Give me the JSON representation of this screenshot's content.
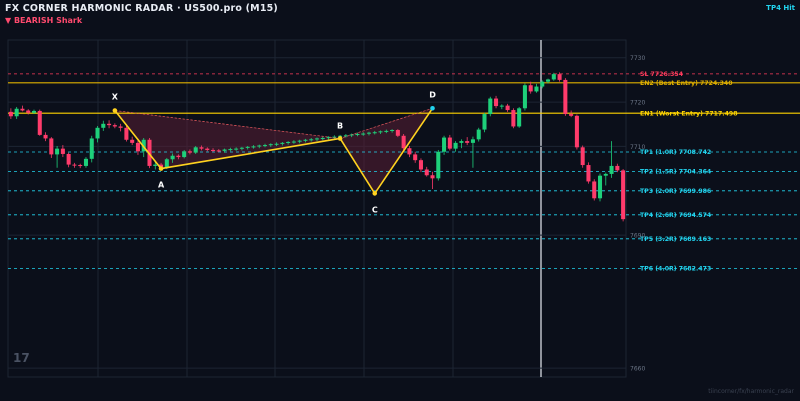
{
  "header": {
    "title": "FX CORNER HARMONIC RADAR  ·  US500.pro (M15)",
    "subtitle": "▼ BEARISH  Shark",
    "status": "TP4 Hit"
  },
  "footer": {
    "watermark": "tiincorner/fx/harmonic_radar",
    "logo": "17"
  },
  "chart_data": {
    "type": "candlestick",
    "symbol": "US500.pro",
    "timeframe": "M15",
    "ylim": [
      7658,
      7734
    ],
    "y_ticks": [
      7660,
      7690,
      7710,
      7720,
      7730
    ],
    "candle_count": 107,
    "candles": [
      {
        "o": 7717.8,
        "h": 7718.6,
        "l": 7716.2,
        "c": 7716.8
      },
      {
        "o": 7716.8,
        "h": 7718.9,
        "l": 7716.2,
        "c": 7718.5
      },
      {
        "o": 7718.5,
        "h": 7719.2,
        "l": 7717.9,
        "c": 7718.1
      },
      {
        "o": 7718.1,
        "h": 7718.4,
        "l": 7717.2,
        "c": 7717.6
      },
      {
        "o": 7717.6,
        "h": 7718.3,
        "l": 7717.3,
        "c": 7718.0
      },
      {
        "o": 7718.0,
        "h": 7718.3,
        "l": 7712.4,
        "c": 7712.6
      },
      {
        "o": 7712.6,
        "h": 7713.2,
        "l": 7711.2,
        "c": 7711.8
      },
      {
        "o": 7711.8,
        "h": 7712.1,
        "l": 7707.4,
        "c": 7708.2
      },
      {
        "o": 7708.2,
        "h": 7710.1,
        "l": 7705.2,
        "c": 7709.5
      },
      {
        "o": 7709.5,
        "h": 7710.3,
        "l": 7707.6,
        "c": 7708.3
      },
      {
        "o": 7708.3,
        "h": 7708.6,
        "l": 7705.3,
        "c": 7705.9
      },
      {
        "o": 7705.9,
        "h": 7706.3,
        "l": 7705.2,
        "c": 7705.8
      },
      {
        "o": 7705.8,
        "h": 7706.1,
        "l": 7705.1,
        "c": 7705.6
      },
      {
        "o": 7705.6,
        "h": 7707.6,
        "l": 7705.2,
        "c": 7707.2
      },
      {
        "o": 7707.2,
        "h": 7712.4,
        "l": 7706.4,
        "c": 7711.8
      },
      {
        "o": 7711.8,
        "h": 7714.6,
        "l": 7710.9,
        "c": 7714.2
      },
      {
        "o": 7714.2,
        "h": 7715.8,
        "l": 7713.5,
        "c": 7715.1
      },
      {
        "o": 7715.1,
        "h": 7715.9,
        "l": 7714.1,
        "c": 7714.8
      },
      {
        "o": 7714.8,
        "h": 7715.2,
        "l": 7714.1,
        "c": 7714.5
      },
      {
        "o": 7714.5,
        "h": 7715.1,
        "l": 7713.4,
        "c": 7714.2
      },
      {
        "o": 7714.2,
        "h": 7714.6,
        "l": 7711.1,
        "c": 7711.5
      },
      {
        "o": 7711.5,
        "h": 7712.2,
        "l": 7710.3,
        "c": 7710.8
      },
      {
        "o": 7710.8,
        "h": 7711.4,
        "l": 7708.1,
        "c": 7708.9
      },
      {
        "o": 7708.9,
        "h": 7711.9,
        "l": 7707.6,
        "c": 7711.5
      },
      {
        "o": 7711.5,
        "h": 7711.9,
        "l": 7705.1,
        "c": 7705.6
      },
      {
        "o": 7705.6,
        "h": 7706.8,
        "l": 7704.8,
        "c": 7705.9
      },
      {
        "o": 7705.9,
        "h": 7706.3,
        "l": 7704.7,
        "c": 7705.3
      },
      {
        "o": 7705.3,
        "h": 7707.4,
        "l": 7704.9,
        "c": 7707.1
      },
      {
        "o": 7707.1,
        "h": 7708.4,
        "l": 7706.3,
        "c": 7707.9
      },
      {
        "o": 7707.9,
        "h": 7708.2,
        "l": 7707.1,
        "c": 7707.6
      },
      {
        "o": 7707.6,
        "h": 7709.2,
        "l": 7707.3,
        "c": 7708.9
      },
      {
        "o": 7708.9,
        "h": 7709.3,
        "l": 7708.2,
        "c": 7708.6
      },
      {
        "o": 7708.6,
        "h": 7710.1,
        "l": 7708.3,
        "c": 7709.8
      },
      {
        "o": 7709.8,
        "h": 7710.2,
        "l": 7709.1,
        "c": 7709.5
      },
      {
        "o": 7709.5,
        "h": 7709.8,
        "l": 7708.9,
        "c": 7709.2
      },
      {
        "o": 7709.2,
        "h": 7709.6,
        "l": 7708.8,
        "c": 7709.1
      },
      {
        "o": 7709.1,
        "h": 7709.4,
        "l": 7708.7,
        "c": 7709.0
      },
      {
        "o": 7709.0,
        "h": 7709.5,
        "l": 7708.6,
        "c": 7709.3
      },
      {
        "o": 7709.3,
        "h": 7709.7,
        "l": 7708.9,
        "c": 7709.4
      },
      {
        "o": 7709.4,
        "h": 7709.8,
        "l": 7709.0,
        "c": 7709.5
      },
      {
        "o": 7709.5,
        "h": 7709.9,
        "l": 7709.1,
        "c": 7709.7
      },
      {
        "o": 7709.7,
        "h": 7710.1,
        "l": 7709.3,
        "c": 7709.9
      },
      {
        "o": 7709.9,
        "h": 7710.3,
        "l": 7709.5,
        "c": 7710.0
      },
      {
        "o": 7710.0,
        "h": 7710.4,
        "l": 7709.6,
        "c": 7710.2
      },
      {
        "o": 7710.2,
        "h": 7710.6,
        "l": 7709.8,
        "c": 7710.3
      },
      {
        "o": 7710.3,
        "h": 7710.7,
        "l": 7709.9,
        "c": 7710.5
      },
      {
        "o": 7710.5,
        "h": 7710.9,
        "l": 7710.1,
        "c": 7710.6
      },
      {
        "o": 7710.6,
        "h": 7711.0,
        "l": 7710.2,
        "c": 7710.8
      },
      {
        "o": 7710.8,
        "h": 7711.2,
        "l": 7710.4,
        "c": 7711.0
      },
      {
        "o": 7711.0,
        "h": 7711.4,
        "l": 7710.6,
        "c": 7711.1
      },
      {
        "o": 7711.1,
        "h": 7711.5,
        "l": 7710.7,
        "c": 7711.3
      },
      {
        "o": 7711.3,
        "h": 7711.7,
        "l": 7710.9,
        "c": 7711.5
      },
      {
        "o": 7711.5,
        "h": 7711.9,
        "l": 7711.1,
        "c": 7711.6
      },
      {
        "o": 7711.6,
        "h": 7712.0,
        "l": 7711.2,
        "c": 7711.8
      },
      {
        "o": 7711.8,
        "h": 7712.2,
        "l": 7711.4,
        "c": 7711.9
      },
      {
        "o": 7711.9,
        "h": 7712.3,
        "l": 7711.5,
        "c": 7712.1
      },
      {
        "o": 7712.1,
        "h": 7712.5,
        "l": 7711.7,
        "c": 7712.2
      },
      {
        "o": 7712.2,
        "h": 7712.6,
        "l": 7711.8,
        "c": 7712.4
      },
      {
        "o": 7712.4,
        "h": 7712.8,
        "l": 7712.0,
        "c": 7712.5
      },
      {
        "o": 7712.5,
        "h": 7712.9,
        "l": 7712.1,
        "c": 7712.7
      },
      {
        "o": 7712.7,
        "h": 7713.1,
        "l": 7712.3,
        "c": 7712.8
      },
      {
        "o": 7712.8,
        "h": 7713.2,
        "l": 7712.4,
        "c": 7712.9
      },
      {
        "o": 7712.9,
        "h": 7713.3,
        "l": 7712.5,
        "c": 7713.1
      },
      {
        "o": 7713.1,
        "h": 7713.5,
        "l": 7712.7,
        "c": 7713.2
      },
      {
        "o": 7713.2,
        "h": 7713.6,
        "l": 7712.8,
        "c": 7713.4
      },
      {
        "o": 7713.4,
        "h": 7713.8,
        "l": 7713.0,
        "c": 7713.5
      },
      {
        "o": 7713.5,
        "h": 7713.9,
        "l": 7713.1,
        "c": 7713.7
      },
      {
        "o": 7713.7,
        "h": 7713.9,
        "l": 7712.1,
        "c": 7712.4
      },
      {
        "o": 7712.4,
        "h": 7712.8,
        "l": 7709.1,
        "c": 7709.6
      },
      {
        "o": 7709.6,
        "h": 7710.1,
        "l": 7707.6,
        "c": 7708.2
      },
      {
        "o": 7708.2,
        "h": 7708.8,
        "l": 7706.3,
        "c": 7706.9
      },
      {
        "o": 7706.9,
        "h": 7707.3,
        "l": 7704.2,
        "c": 7704.8
      },
      {
        "o": 7704.8,
        "h": 7705.4,
        "l": 7703.2,
        "c": 7703.5
      },
      {
        "o": 7703.5,
        "h": 7704.3,
        "l": 7700.4,
        "c": 7702.8
      },
      {
        "o": 7702.8,
        "h": 7709.2,
        "l": 7702.3,
        "c": 7708.8
      },
      {
        "o": 7708.8,
        "h": 7712.4,
        "l": 7708.1,
        "c": 7712.0
      },
      {
        "o": 7712.0,
        "h": 7712.6,
        "l": 7709.1,
        "c": 7709.5
      },
      {
        "o": 7709.5,
        "h": 7711.2,
        "l": 7708.8,
        "c": 7710.8
      },
      {
        "o": 7710.8,
        "h": 7711.6,
        "l": 7709.6,
        "c": 7711.2
      },
      {
        "o": 7711.2,
        "h": 7712.1,
        "l": 7710.3,
        "c": 7710.8
      },
      {
        "o": 7710.8,
        "h": 7712.2,
        "l": 7705.2,
        "c": 7711.6
      },
      {
        "o": 7711.6,
        "h": 7714.2,
        "l": 7711.1,
        "c": 7713.8
      },
      {
        "o": 7713.8,
        "h": 7717.6,
        "l": 7713.2,
        "c": 7717.3
      },
      {
        "o": 7717.3,
        "h": 7721.2,
        "l": 7716.8,
        "c": 7720.8
      },
      {
        "o": 7720.8,
        "h": 7721.4,
        "l": 7718.6,
        "c": 7719.1
      },
      {
        "o": 7719.1,
        "h": 7719.5,
        "l": 7718.4,
        "c": 7719.2
      },
      {
        "o": 7719.2,
        "h": 7719.6,
        "l": 7717.8,
        "c": 7718.2
      },
      {
        "o": 7718.2,
        "h": 7718.6,
        "l": 7714.1,
        "c": 7714.5
      },
      {
        "o": 7714.5,
        "h": 7718.9,
        "l": 7714.2,
        "c": 7718.6
      },
      {
        "o": 7718.6,
        "h": 7724.2,
        "l": 7718.1,
        "c": 7723.8
      },
      {
        "o": 7723.8,
        "h": 7724.6,
        "l": 7721.9,
        "c": 7722.4
      },
      {
        "o": 7722.4,
        "h": 7724.1,
        "l": 7722.1,
        "c": 7723.5
      },
      {
        "o": 7723.5,
        "h": 7724.9,
        "l": 7723.1,
        "c": 7724.6
      },
      {
        "o": 7724.6,
        "h": 7725.3,
        "l": 7724.2,
        "c": 7725.1
      },
      {
        "o": 7725.1,
        "h": 7726.6,
        "l": 7724.8,
        "c": 7726.3
      },
      {
        "o": 7726.3,
        "h": 7726.7,
        "l": 7724.6,
        "c": 7725.0
      },
      {
        "o": 7725.0,
        "h": 7725.4,
        "l": 7716.9,
        "c": 7717.3
      },
      {
        "o": 7717.3,
        "h": 7718.1,
        "l": 7716.6,
        "c": 7716.9
      },
      {
        "o": 7716.9,
        "h": 7717.2,
        "l": 7709.3,
        "c": 7709.8
      },
      {
        "o": 7709.8,
        "h": 7710.2,
        "l": 7705.2,
        "c": 7705.8
      },
      {
        "o": 7705.8,
        "h": 7706.4,
        "l": 7701.6,
        "c": 7702.1
      },
      {
        "o": 7702.1,
        "h": 7702.6,
        "l": 7697.8,
        "c": 7698.3
      },
      {
        "o": 7698.3,
        "h": 7703.9,
        "l": 7697.6,
        "c": 7703.4
      },
      {
        "o": 7703.4,
        "h": 7704.1,
        "l": 7701.2,
        "c": 7703.8
      },
      {
        "o": 7703.8,
        "h": 7711.2,
        "l": 7702.9,
        "c": 7705.6
      },
      {
        "o": 7705.6,
        "h": 7706.1,
        "l": 7704.2,
        "c": 7704.6
      },
      {
        "o": 7704.6,
        "h": 7704.9,
        "l": 7693.1,
        "c": 7693.6
      }
    ],
    "pattern": {
      "name": "Shark",
      "direction": "bearish",
      "points": [
        {
          "label": "X",
          "i": 18,
          "price": 7718.1
        },
        {
          "label": "A",
          "i": 26,
          "price": 7705.0
        },
        {
          "label": "B",
          "i": 57,
          "price": 7711.8
        },
        {
          "label": "C",
          "i": 63,
          "price": 7699.4
        },
        {
          "label": "D",
          "i": 73,
          "price": 7718.6
        }
      ]
    },
    "levels": [
      {
        "label": "SL",
        "value": 7726.354,
        "color": "#ff3b5c",
        "style": "dashed"
      },
      {
        "label": "EN2 (Best Entry)",
        "value": 7724.34,
        "color": "#e0b000",
        "style": "solid"
      },
      {
        "label": "EN1 (Worst Entry)",
        "value": 7717.498,
        "color": "#ffd400",
        "style": "solid"
      },
      {
        "label": "TP1 (1.0R)",
        "value": 7708.742,
        "color": "#22d3ee",
        "style": "dashed"
      },
      {
        "label": "TP2 (1.5R)",
        "value": 7704.364,
        "color": "#22d3ee",
        "style": "dashed"
      },
      {
        "label": "TP3 (2.0R)",
        "value": 7699.986,
        "color": "#22d3ee",
        "style": "dashed"
      },
      {
        "label": "TP4 (2.6R)",
        "value": 7694.574,
        "color": "#22d3ee",
        "style": "dashed"
      },
      {
        "label": "TP5 (3.2R)",
        "value": 7689.163,
        "color": "#22d3ee",
        "style": "dashed"
      },
      {
        "label": "TP6 (4.0R)",
        "value": 7682.473,
        "color": "#22d3ee",
        "style": "dashed"
      }
    ],
    "colors": {
      "bull": "#1ed07a",
      "bear": "#ff3b6b",
      "pattern_line": "#ffd21f",
      "pattern_fill": "#5a1f35",
      "grid": "#1d2533",
      "axis_text": "#6c7687"
    }
  }
}
